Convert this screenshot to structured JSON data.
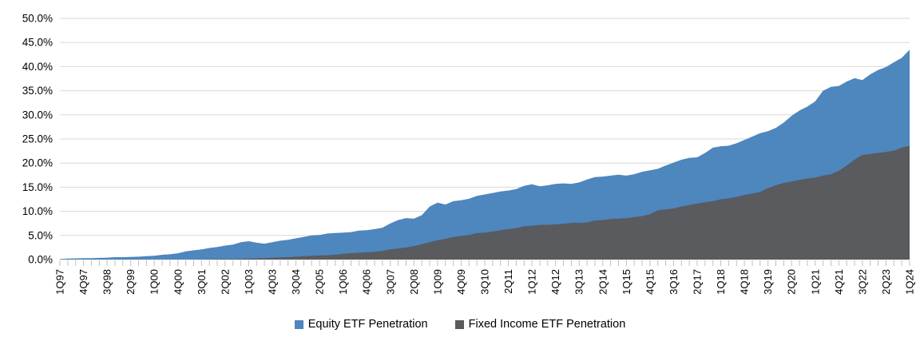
{
  "chart_data": {
    "type": "area",
    "mode": "overlap",
    "title": "",
    "xlabel": "",
    "ylabel": "",
    "ylim": [
      0,
      50
    ],
    "y_tick_step": 5,
    "y_tick_labels": [
      "0.0%",
      "5.0%",
      "10.0%",
      "15.0%",
      "20.0%",
      "25.0%",
      "30.0%",
      "35.0%",
      "40.0%",
      "45.0%",
      "50.0%"
    ],
    "grid": "horizontal",
    "gridline_color": "#D9D9D9",
    "tick_color": "#BFBFBF",
    "x_label_every": 3,
    "x_label_rotation": -90,
    "legend_position": "bottom",
    "categories": [
      "1Q97",
      "2Q97",
      "3Q97",
      "4Q97",
      "1Q98",
      "2Q98",
      "3Q98",
      "4Q98",
      "1Q99",
      "2Q99",
      "3Q99",
      "4Q99",
      "1Q00",
      "2Q00",
      "3Q00",
      "4Q00",
      "1Q01",
      "2Q01",
      "3Q01",
      "4Q01",
      "1Q02",
      "2Q02",
      "3Q02",
      "4Q02",
      "1Q03",
      "2Q03",
      "3Q03",
      "4Q03",
      "1Q04",
      "2Q04",
      "3Q04",
      "4Q04",
      "1Q05",
      "2Q05",
      "3Q05",
      "4Q05",
      "1Q06",
      "2Q06",
      "3Q06",
      "4Q06",
      "1Q07",
      "2Q07",
      "3Q07",
      "4Q07",
      "1Q08",
      "2Q08",
      "3Q08",
      "4Q08",
      "1Q09",
      "2Q09",
      "3Q09",
      "4Q09",
      "1Q10",
      "2Q10",
      "3Q10",
      "4Q10",
      "1Q11",
      "2Q11",
      "3Q11",
      "4Q11",
      "1Q12",
      "2Q12",
      "3Q12",
      "4Q12",
      "1Q13",
      "2Q13",
      "3Q13",
      "4Q13",
      "1Q14",
      "2Q14",
      "3Q14",
      "4Q14",
      "1Q15",
      "2Q15",
      "3Q15",
      "4Q15",
      "1Q16",
      "2Q16",
      "3Q16",
      "4Q16",
      "1Q17",
      "2Q17",
      "3Q17",
      "4Q17",
      "1Q18",
      "2Q18",
      "3Q18",
      "4Q18",
      "1Q19",
      "2Q19",
      "3Q19",
      "4Q19",
      "1Q20",
      "2Q20",
      "3Q20",
      "4Q20",
      "1Q21",
      "2Q21",
      "3Q21",
      "4Q21",
      "1Q22",
      "2Q22",
      "3Q22",
      "4Q22",
      "1Q23",
      "2Q23",
      "3Q23",
      "4Q23",
      "1Q24"
    ],
    "series": [
      {
        "name": "Equity ETF Penetration",
        "color": "#4E86BE",
        "values": [
          0.1,
          0.2,
          0.25,
          0.3,
          0.3,
          0.35,
          0.4,
          0.5,
          0.5,
          0.55,
          0.6,
          0.7,
          0.8,
          1.0,
          1.1,
          1.3,
          1.7,
          1.9,
          2.1,
          2.4,
          2.6,
          2.9,
          3.1,
          3.6,
          3.8,
          3.5,
          3.3,
          3.6,
          3.9,
          4.1,
          4.4,
          4.7,
          5.0,
          5.1,
          5.4,
          5.5,
          5.6,
          5.7,
          6.0,
          6.1,
          6.3,
          6.6,
          7.5,
          8.2,
          8.6,
          8.5,
          9.2,
          11.0,
          11.8,
          11.4,
          12.1,
          12.3,
          12.6,
          13.2,
          13.5,
          13.8,
          14.1,
          14.3,
          14.6,
          15.3,
          15.6,
          15.2,
          15.4,
          15.7,
          15.8,
          15.7,
          16.0,
          16.6,
          17.1,
          17.2,
          17.4,
          17.6,
          17.4,
          17.7,
          18.2,
          18.5,
          18.8,
          19.5,
          20.1,
          20.7,
          21.1,
          21.2,
          22.1,
          23.2,
          23.5,
          23.6,
          24.1,
          24.8,
          25.5,
          26.2,
          26.6,
          27.3,
          28.4,
          29.8,
          30.9,
          31.7,
          32.8,
          35.0,
          35.8,
          36.0,
          36.9,
          37.6,
          37.2,
          38.4,
          39.3,
          39.9,
          40.9,
          41.8,
          43.5
        ]
      },
      {
        "name": "Fixed Income ETF Penetration",
        "color": "#595B5F",
        "values": [
          0,
          0,
          0,
          0,
          0,
          0,
          0,
          0,
          0,
          0,
          0,
          0,
          0,
          0,
          0,
          0,
          0,
          0,
          0.05,
          0.05,
          0.1,
          0.1,
          0.1,
          0.15,
          0.2,
          0.25,
          0.3,
          0.4,
          0.45,
          0.5,
          0.6,
          0.7,
          0.8,
          0.85,
          0.9,
          1.0,
          1.2,
          1.3,
          1.4,
          1.5,
          1.6,
          1.8,
          2.1,
          2.3,
          2.5,
          2.8,
          3.2,
          3.6,
          4.0,
          4.3,
          4.7,
          4.9,
          5.1,
          5.5,
          5.6,
          5.8,
          6.1,
          6.3,
          6.5,
          6.9,
          7.0,
          7.2,
          7.2,
          7.3,
          7.4,
          7.6,
          7.6,
          7.7,
          8.1,
          8.2,
          8.4,
          8.5,
          8.6,
          8.8,
          9.0,
          9.4,
          10.2,
          10.4,
          10.6,
          11.0,
          11.3,
          11.6,
          11.9,
          12.1,
          12.5,
          12.7,
          13.0,
          13.4,
          13.7,
          14.0,
          14.8,
          15.4,
          15.9,
          16.2,
          16.5,
          16.8,
          17.0,
          17.4,
          17.7,
          18.4,
          19.5,
          20.7,
          21.7,
          21.9,
          22.1,
          22.3,
          22.6,
          23.2,
          23.6
        ]
      }
    ]
  }
}
